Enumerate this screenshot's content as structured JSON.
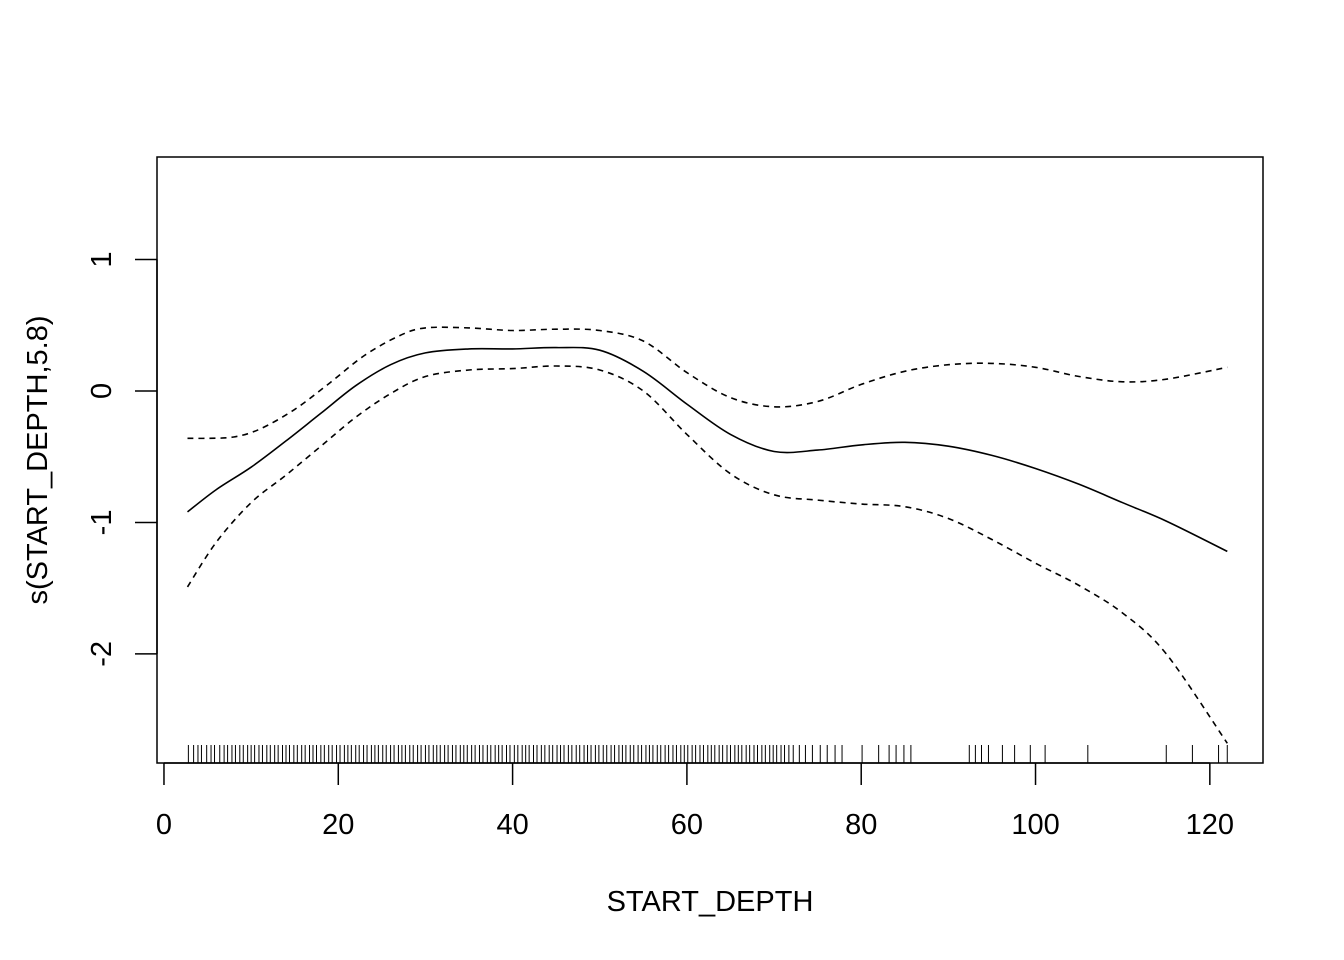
{
  "chart_data": {
    "type": "line",
    "xlabel": "START_DEPTH",
    "ylabel": "s(START_DEPTH,5.8)",
    "xlim": [
      -0.8,
      126.1
    ],
    "ylim": [
      -2.83,
      1.78
    ],
    "xticks": [
      0,
      20,
      40,
      60,
      80,
      100,
      120
    ],
    "yticks": [
      -2,
      -1,
      0,
      1
    ],
    "xtick_labels": [
      "0",
      "20",
      "40",
      "60",
      "80",
      "100",
      "120"
    ],
    "ytick_labels": [
      "-2",
      "-1",
      "0",
      "1"
    ],
    "grid": false,
    "series": [
      {
        "style": "solid",
        "x": [
          2.7,
          6,
          10,
          14,
          18,
          22,
          26,
          30,
          35,
          40,
          45,
          50,
          55,
          60,
          65,
          70,
          75,
          80,
          85,
          90,
          95,
          100,
          105,
          110,
          115,
          122
        ],
        "y": [
          -0.92,
          -0.75,
          -0.58,
          -0.38,
          -0.17,
          0.04,
          0.2,
          0.29,
          0.32,
          0.32,
          0.33,
          0.31,
          0.15,
          -0.1,
          -0.33,
          -0.46,
          -0.45,
          -0.41,
          -0.39,
          -0.42,
          -0.49,
          -0.59,
          -0.71,
          -0.85,
          -0.99,
          -1.22
        ]
      },
      {
        "style": "dashed",
        "x": [
          2.7,
          5,
          8,
          11,
          15,
          19,
          23,
          27,
          30,
          35,
          40,
          45,
          50,
          55,
          60,
          65,
          70,
          75,
          80,
          85,
          90,
          95,
          100,
          105,
          110,
          115,
          122
        ],
        "y": [
          -0.36,
          -0.36,
          -0.35,
          -0.29,
          -0.14,
          0.06,
          0.27,
          0.42,
          0.48,
          0.48,
          0.46,
          0.47,
          0.46,
          0.38,
          0.14,
          -0.05,
          -0.12,
          -0.08,
          0.05,
          0.15,
          0.2,
          0.21,
          0.18,
          0.11,
          0.07,
          0.09,
          0.18
        ]
      },
      {
        "style": "dashed",
        "x": [
          2.7,
          6,
          10,
          14,
          18,
          22,
          26,
          30,
          35,
          40,
          45,
          50,
          55,
          60,
          65,
          70,
          75,
          80,
          85,
          90,
          95,
          100,
          105,
          110,
          115,
          122
        ],
        "y": [
          -1.49,
          -1.15,
          -0.85,
          -0.64,
          -0.42,
          -0.2,
          -0.02,
          0.11,
          0.16,
          0.17,
          0.19,
          0.16,
          0.0,
          -0.33,
          -0.63,
          -0.79,
          -0.83,
          -0.86,
          -0.88,
          -0.97,
          -1.13,
          -1.31,
          -1.48,
          -1.69,
          -2.0,
          -2.68
        ]
      }
    ],
    "rug": [
      2.8,
      3.4,
      3.9,
      4.3,
      4.9,
      5.4,
      5.8,
      6.4,
      6.9,
      7.3,
      7.8,
      8.2,
      8.7,
      9.1,
      9.6,
      10.0,
      10.4,
      10.9,
      11.3,
      11.8,
      12.2,
      12.7,
      13.1,
      13.6,
      14.0,
      14.4,
      14.9,
      15.3,
      15.8,
      16.2,
      16.7,
      17.1,
      17.5,
      18.0,
      18.4,
      18.9,
      19.3,
      19.8,
      20.2,
      20.7,
      21.1,
      21.5,
      22.0,
      22.4,
      22.9,
      23.3,
      23.8,
      24.2,
      24.6,
      25.1,
      25.5,
      26.0,
      26.4,
      26.9,
      27.3,
      27.7,
      28.2,
      28.6,
      29.1,
      29.5,
      30.0,
      30.4,
      30.9,
      31.3,
      31.7,
      32.2,
      32.6,
      33.1,
      33.5,
      34.0,
      34.4,
      34.8,
      35.3,
      35.7,
      36.2,
      36.6,
      37.1,
      37.5,
      38.0,
      38.4,
      38.8,
      39.3,
      39.7,
      40.2,
      40.6,
      41.1,
      41.5,
      41.9,
      42.4,
      42.8,
      43.3,
      43.7,
      44.2,
      44.6,
      45.1,
      45.5,
      45.9,
      46.4,
      46.8,
      47.3,
      47.7,
      48.2,
      48.6,
      49.0,
      49.5,
      49.9,
      50.4,
      50.8,
      51.3,
      51.7,
      52.2,
      52.6,
      53.0,
      53.5,
      53.9,
      54.4,
      54.8,
      55.3,
      55.7,
      56.1,
      56.6,
      57.0,
      57.5,
      57.9,
      58.4,
      58.8,
      59.3,
      59.7,
      60.1,
      60.6,
      61.0,
      61.5,
      61.9,
      62.4,
      62.8,
      63.2,
      63.7,
      64.1,
      64.6,
      65.0,
      65.5,
      65.9,
      66.3,
      66.8,
      67.2,
      67.7,
      68.1,
      68.6,
      69.0,
      69.5,
      69.9,
      70.3,
      70.8,
      71.2,
      71.7,
      72.2,
      72.9,
      73.6,
      74.4,
      75.3,
      76.1,
      77.0,
      77.8,
      80.1,
      82.0,
      83.2,
      84.0,
      84.9,
      85.7,
      92.4,
      93.1,
      93.8,
      94.6,
      96.2,
      97.6,
      99.4,
      101.1,
      106.0,
      115.0,
      118.0,
      121.0,
      122.0
    ]
  }
}
